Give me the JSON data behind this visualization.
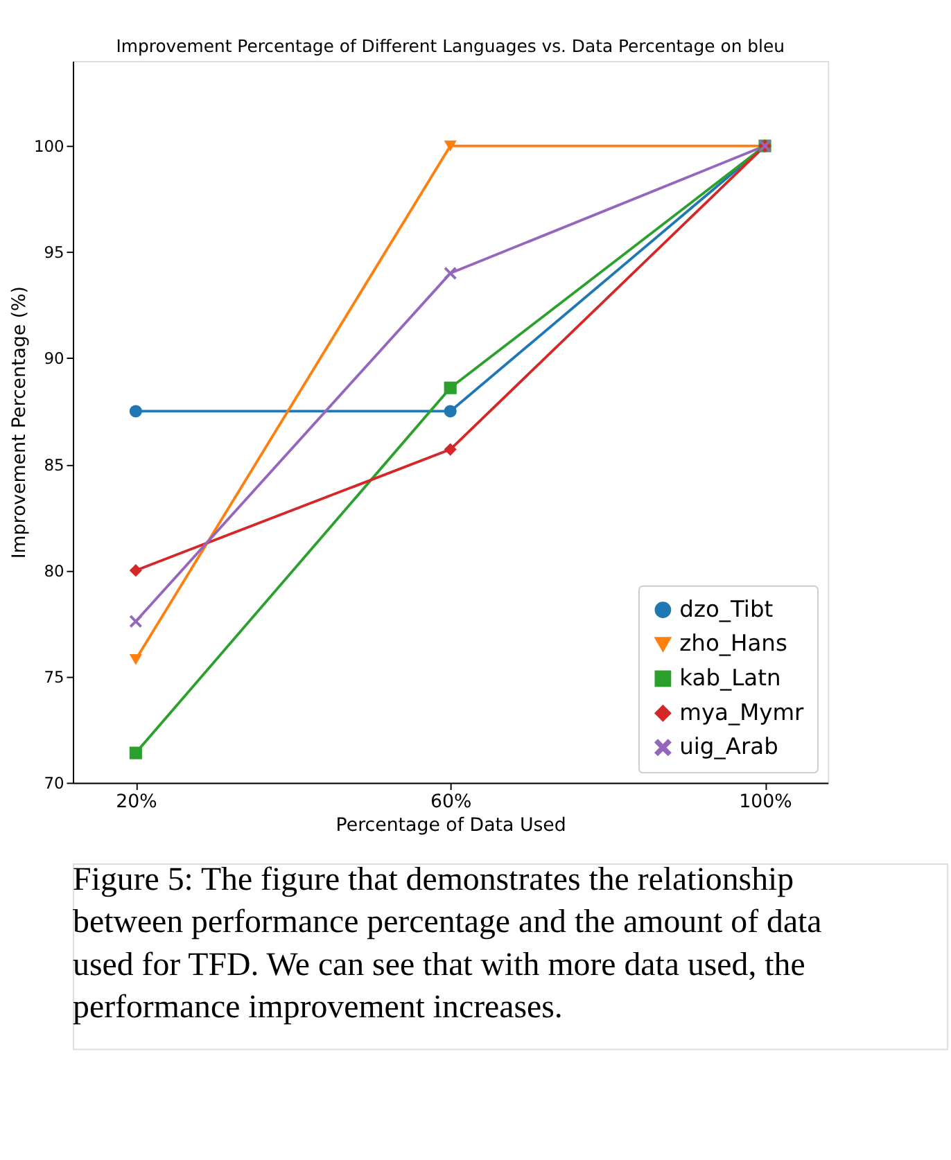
{
  "chart_data": {
    "type": "line",
    "title": "Improvement Percentage of Different Languages vs. Data Percentage on bleu",
    "xlabel": "Percentage of Data Used",
    "ylabel": "Improvement Percentage (%)",
    "categories": [
      "20%",
      "60%",
      "100%"
    ],
    "ylim": [
      70,
      104
    ],
    "yticks": [
      70,
      75,
      80,
      85,
      90,
      95,
      100
    ],
    "grid": false,
    "legend": "bottom right",
    "line_style": "solid",
    "series": [
      {
        "name": "dzo_Tibt",
        "color": "#1f77b4",
        "marker": "circle",
        "values": [
          87.5,
          87.5,
          100
        ]
      },
      {
        "name": "zho_Hans",
        "color": "#ff7f0e",
        "marker": "triangle",
        "values": [
          75.8,
          100,
          100
        ]
      },
      {
        "name": "kab_Latn",
        "color": "#2ca02c",
        "marker": "square",
        "values": [
          71.4,
          88.6,
          100
        ]
      },
      {
        "name": "mya_Mymr",
        "color": "#d62728",
        "marker": "diamond",
        "values": [
          80.0,
          85.7,
          100
        ]
      },
      {
        "name": "uig_Arab",
        "color": "#9467bd",
        "marker": "cross",
        "values": [
          77.6,
          94.0,
          100
        ]
      }
    ],
    "annotations": [
      "Figure 5: The figure that demonstrates the relationship between performance percentage and the amount of data used for TFD. We can see that with more data used, the performance improvement increases."
    ]
  }
}
